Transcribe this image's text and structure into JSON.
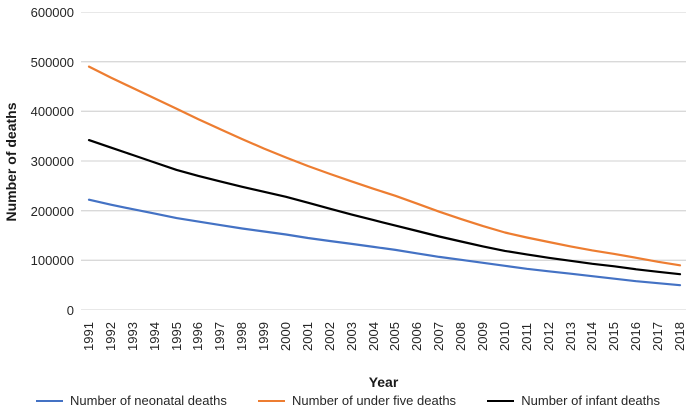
{
  "figure": {
    "y_axis_title": "Number of deaths",
    "x_axis_title": "Year"
  },
  "chart_data": {
    "type": "line",
    "title": "",
    "xlabel": "Year",
    "ylabel": "Number of deaths",
    "ylim": [
      0,
      600000
    ],
    "y_ticks": [
      0,
      100000,
      200000,
      300000,
      400000,
      500000,
      600000
    ],
    "grid": "horizontal",
    "grid_color": "#D9D9D9",
    "legend_position": "bottom",
    "x": [
      1991,
      1992,
      1993,
      1994,
      1995,
      1996,
      1997,
      1998,
      1999,
      2000,
      2001,
      2002,
      2003,
      2004,
      2005,
      2006,
      2007,
      2008,
      2009,
      2010,
      2011,
      2012,
      2013,
      2014,
      2015,
      2016,
      2017,
      2018
    ],
    "series": [
      {
        "name": "Number of neonatal deaths",
        "color": "#4472C4",
        "values": [
          222000,
          212000,
          203000,
          194000,
          185000,
          178000,
          171000,
          164000,
          158000,
          152000,
          145000,
          139000,
          133000,
          127000,
          121000,
          114000,
          107000,
          101000,
          95000,
          89000,
          83000,
          78000,
          73000,
          68000,
          63000,
          58000,
          54000,
          50000
        ]
      },
      {
        "name": "Number of under five deaths",
        "color": "#ED7D31",
        "values": [
          490000,
          468000,
          447000,
          426000,
          405000,
          384000,
          364000,
          344000,
          325000,
          307000,
          290000,
          274000,
          259000,
          244000,
          230000,
          214000,
          198000,
          183000,
          169000,
          156000,
          146000,
          137000,
          128000,
          120000,
          113000,
          105000,
          97000,
          90000
        ]
      },
      {
        "name": "Number of infant deaths",
        "color": "#000000",
        "values": [
          342000,
          327000,
          312000,
          297000,
          282000,
          270000,
          259000,
          248000,
          238000,
          228000,
          216000,
          204000,
          192000,
          181000,
          170000,
          159000,
          148000,
          138000,
          128000,
          119000,
          112000,
          105000,
          99000,
          93000,
          88000,
          82000,
          77000,
          72000
        ]
      }
    ]
  }
}
